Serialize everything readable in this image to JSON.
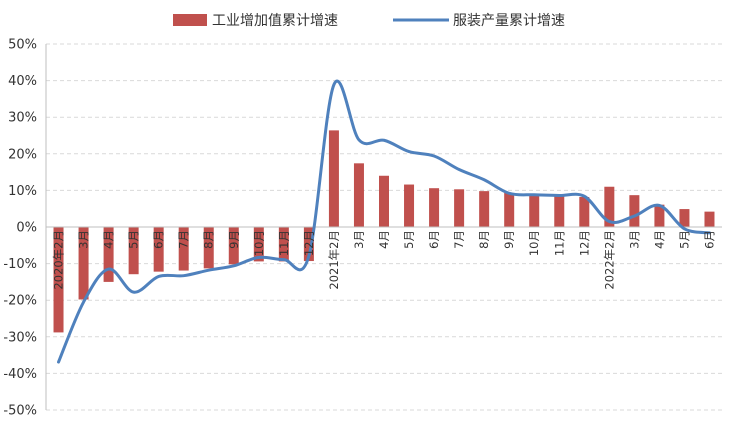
{
  "chart_data": {
    "type": "bar+line",
    "categories": [
      "2020年2月",
      "3月",
      "4月",
      "5月",
      "6月",
      "7月",
      "8月",
      "9月",
      "10月",
      "11月",
      "12月",
      "2021年2月",
      "3月",
      "4月",
      "5月",
      "6月",
      "7月",
      "8月",
      "9月",
      "10月",
      "11月",
      "12月",
      "2022年2月",
      "3月",
      "4月",
      "5月",
      "6月"
    ],
    "series": [
      {
        "name": "工业增加值累计增速",
        "type": "bar",
        "color": "#C0504D",
        "values": [
          -28.8,
          -19.8,
          -15.0,
          -12.9,
          -12.2,
          -11.9,
          -11.3,
          -10.2,
          -9.4,
          -9.4,
          -9.3,
          26.4,
          17.4,
          14.0,
          11.6,
          10.6,
          10.3,
          9.8,
          9.3,
          8.9,
          8.5,
          8.2,
          11.0,
          8.7,
          6.1,
          4.9,
          4.2
        ]
      },
      {
        "name": "服装产量累计增速",
        "type": "line",
        "color": "#4F81BD",
        "values": [
          -36.9,
          -20.5,
          -11.5,
          -17.8,
          -13.5,
          -13.3,
          -11.8,
          -10.6,
          -8.3,
          -8.9,
          -7.9,
          38.9,
          23.8,
          23.7,
          20.6,
          19.4,
          15.7,
          12.9,
          9.2,
          8.8,
          8.6,
          8.4,
          1.5,
          3.0,
          5.9,
          -0.5,
          -1.6
        ]
      }
    ],
    "yticks": [
      "50%",
      "40%",
      "30%",
      "20%",
      "10%",
      "0%",
      "-10%",
      "-20%",
      "-30%",
      "-40%",
      "-50%"
    ],
    "ylim": [
      -50,
      50
    ],
    "grid": true,
    "legend_position": "top"
  }
}
